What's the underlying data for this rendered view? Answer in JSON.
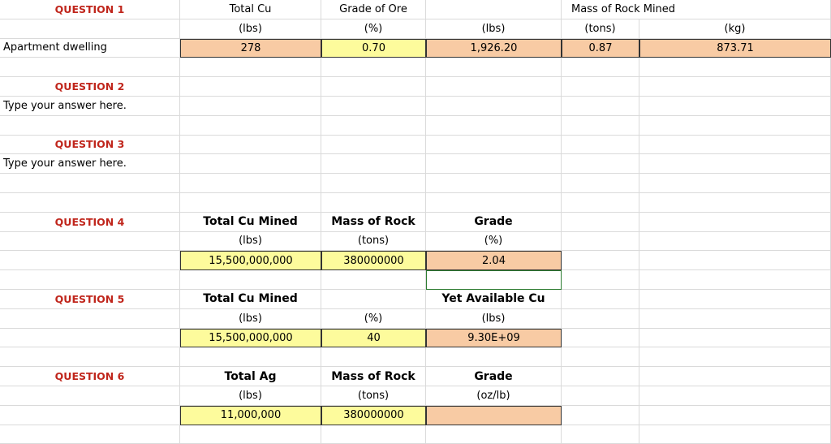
{
  "rows": [
    [
      {
        "text": "QUESTION 1",
        "style": "q"
      },
      "Total Cu",
      "Grade of Ore",
      null,
      {
        "text": "Mass of Rock Mined",
        "style": "over"
      },
      null
    ],
    [
      null,
      "(lbs)",
      "(%)",
      "(lbs)",
      "(tons)",
      "(kg)"
    ],
    [
      {
        "text": "Apartment dwelling",
        "style": "left"
      },
      {
        "text": "278",
        "fill": "orange"
      },
      {
        "text": "0.70",
        "fill": "yellow"
      },
      {
        "text": "1,926.20",
        "fill": "orange"
      },
      {
        "text": "0.87",
        "fill": "orange"
      },
      {
        "text": "873.71",
        "fill": "orange"
      }
    ],
    [
      null,
      null,
      null,
      null,
      null,
      null
    ],
    [
      {
        "text": "QUESTION 2",
        "style": "q"
      },
      null,
      null,
      null,
      null,
      null
    ],
    [
      {
        "text": "Type your answer here.",
        "style": "left"
      },
      null,
      null,
      null,
      null,
      null
    ],
    [
      null,
      null,
      null,
      null,
      null,
      null
    ],
    [
      {
        "text": "QUESTION 3",
        "style": "q"
      },
      null,
      null,
      null,
      null,
      null
    ],
    [
      {
        "text": "Type your answer here.",
        "style": "left"
      },
      null,
      null,
      null,
      null,
      null
    ],
    [
      null,
      null,
      null,
      null,
      null,
      null
    ],
    [
      null,
      null,
      null,
      null,
      null,
      null
    ],
    [
      {
        "text": "QUESTION 4",
        "style": "q"
      },
      {
        "text": "Total Cu Mined",
        "style": "bold"
      },
      {
        "text": "Mass of Rock",
        "style": "bold"
      },
      {
        "text": "Grade",
        "style": "bold"
      },
      null,
      null
    ],
    [
      null,
      "(lbs)",
      "(tons)",
      "(%)",
      null,
      null
    ],
    [
      null,
      {
        "text": "15,500,000,000",
        "fill": "yellow"
      },
      {
        "text": "380000000",
        "fill": "yellow"
      },
      {
        "text": "2.04",
        "fill": "orange"
      },
      null,
      null
    ],
    [
      null,
      null,
      null,
      {
        "outline": "green"
      },
      null,
      null
    ],
    [
      {
        "text": "QUESTION 5",
        "style": "q"
      },
      {
        "text": "Total Cu Mined",
        "style": "bold"
      },
      null,
      {
        "text": "Yet Available Cu",
        "style": "bold"
      },
      null,
      null
    ],
    [
      null,
      "(lbs)",
      "(%)",
      "(lbs)",
      null,
      null
    ],
    [
      null,
      {
        "text": "15,500,000,000",
        "fill": "yellow"
      },
      {
        "text": "40",
        "fill": "yellow"
      },
      {
        "text": "9.30E+09",
        "fill": "orange"
      },
      null,
      null
    ],
    [
      null,
      null,
      null,
      null,
      null,
      null
    ],
    [
      {
        "text": "QUESTION 6",
        "style": "q"
      },
      {
        "text": "Total Ag",
        "style": "bold"
      },
      {
        "text": "Mass of Rock",
        "style": "bold"
      },
      {
        "text": "Grade",
        "style": "bold"
      },
      null,
      null
    ],
    [
      null,
      "(lbs)",
      "(tons)",
      "(oz/lb)",
      null,
      null
    ],
    [
      null,
      {
        "text": "11,000,000",
        "fill": "yellow"
      },
      {
        "text": "380000000",
        "fill": "yellow"
      },
      {
        "fill": "orange"
      },
      null,
      null
    ],
    [
      null,
      null,
      null,
      null,
      null,
      null
    ]
  ]
}
